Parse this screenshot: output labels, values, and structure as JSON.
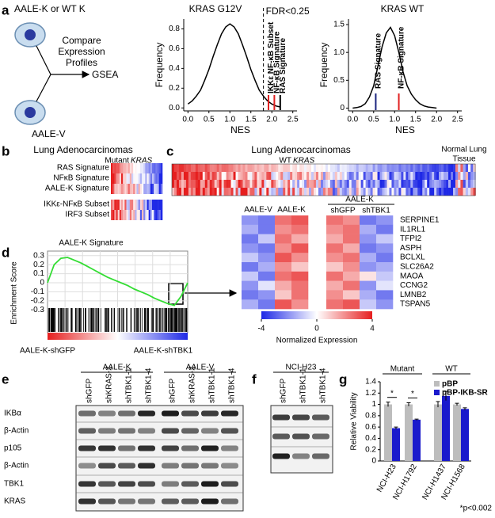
{
  "panel_labels": [
    "a",
    "b",
    "c",
    "d",
    "e",
    "f",
    "g"
  ],
  "schematic": {
    "top_cell": "AALE-K or WT K",
    "bottom_cell": "AALE-V",
    "step": [
      "Compare",
      "Expression",
      "Profiles"
    ],
    "result": "GSEA"
  },
  "chart_data": [
    {
      "type": "line",
      "title": "KRAS G12V",
      "x_label": "NES",
      "y_label": "Frequency",
      "color": "#000000",
      "x": [
        0.0,
        0.1,
        0.2,
        0.3,
        0.4,
        0.5,
        0.6,
        0.7,
        0.8,
        0.9,
        1.0,
        1.1,
        1.2,
        1.3,
        1.4,
        1.5,
        1.6,
        1.7,
        1.8,
        1.9,
        2.0,
        2.1,
        2.2
      ],
      "values": [
        0.04,
        0.07,
        0.12,
        0.18,
        0.28,
        0.39,
        0.52,
        0.64,
        0.75,
        0.82,
        0.85,
        0.82,
        0.75,
        0.64,
        0.52,
        0.39,
        0.28,
        0.18,
        0.12,
        0.07,
        0.04,
        0.02,
        0.01
      ],
      "xlim": [
        -0.1,
        2.6
      ],
      "xticks": [
        {
          "value": 0,
          "label": "0.0"
        },
        0.5,
        {
          "value": 1,
          "label": "1.0"
        },
        1.5,
        {
          "value": 2,
          "label": "2.0"
        },
        2.5
      ],
      "ylim": [
        -0.03,
        0.9
      ],
      "yticks": [
        {
          "value": 0,
          "label": "0.0"
        },
        0.2,
        0.4,
        0.6,
        0.8
      ],
      "threshold": {
        "value": 1.8,
        "label": "FDR<0.25"
      },
      "markers": [
        {
          "label": "IKKε NF-κB Subset",
          "value": 1.92,
          "color": "#e02020"
        },
        {
          "label": "NF-κB Signature",
          "value": 2.06,
          "color": "#e02020"
        },
        {
          "label": "RAS Signature",
          "value": 2.2,
          "color": "#000000"
        }
      ]
    },
    {
      "type": "line",
      "title": "KRAS WT",
      "x_label": "NES",
      "y_label": "Frequency",
      "color": "#000000",
      "x": [
        0.0,
        0.1,
        0.2,
        0.3,
        0.4,
        0.5,
        0.6,
        0.7,
        0.8,
        0.9,
        1.0,
        1.1,
        1.2,
        1.3,
        1.4,
        1.5,
        1.6,
        1.7,
        1.8,
        1.9,
        2.0
      ],
      "values": [
        0,
        0.01,
        0.03,
        0.08,
        0.2,
        0.4,
        0.75,
        1.1,
        1.35,
        1.45,
        1.3,
        1.0,
        0.65,
        0.4,
        0.25,
        0.15,
        0.08,
        0.04,
        0.02,
        0.01,
        0
      ],
      "xlim": [
        -0.1,
        2.6
      ],
      "xticks": [
        {
          "value": 0,
          "label": "0.0"
        },
        0.5,
        {
          "value": 1,
          "label": "1.0"
        },
        1.5,
        {
          "value": 2,
          "label": "2.0"
        },
        2.5
      ],
      "ylim": [
        -0.05,
        1.6
      ],
      "yticks": [
        0,
        0.5,
        {
          "value": 1,
          "label": "1.0"
        },
        1.5
      ],
      "markers": [
        {
          "label": "RAS Signature",
          "value": 0.55,
          "color": "#1a237e"
        },
        {
          "label": "NF-κB Signature",
          "value": 1.1,
          "color": "#e02020"
        }
      ]
    },
    {
      "type": "line",
      "title": "AALE-K Signature",
      "y_label": "Enrichment Score",
      "color": "#33dd33",
      "values": [
        0,
        0.2,
        0.27,
        0.28,
        0.25,
        0.22,
        0.18,
        0.14,
        0.1,
        0.06,
        0.03,
        0,
        -0.03,
        -0.07,
        -0.1,
        -0.13,
        -0.17,
        -0.2,
        -0.23,
        -0.25,
        -0.15,
        0
      ],
      "ylim": [
        -0.35,
        0.35
      ],
      "yticks": [
        0.3,
        0.2,
        0.1,
        0,
        -0.1,
        -0.2,
        -0.3
      ],
      "grid": true,
      "x_labels": [
        "AALE-K-shGFP",
        "AALE-K-shTBK1"
      ]
    },
    {
      "type": "bar",
      "y_label": "Relative Viability",
      "categories": [
        "NCI-H23",
        "NCI-H1792",
        "NCI-H1437",
        "NCI-H1568"
      ],
      "series": [
        {
          "name": "pBP",
          "color": "#bdbdbd",
          "values": [
            1,
            1,
            1,
            1
          ],
          "errors": [
            0.04,
            0.03,
            0.05,
            0.02
          ]
        },
        {
          "name": "pBP-IKB-SR",
          "color": "#1a1acc",
          "values": [
            0.58,
            0.73,
            1.15,
            0.92
          ],
          "errors": [
            0.02,
            0.01,
            0.08,
            0.02
          ]
        }
      ],
      "ylim": [
        0,
        1.4
      ],
      "yticks": [
        0,
        0.2,
        0.4,
        0.6,
        0.8,
        1,
        1.2,
        1.4
      ],
      "legend": "top-right",
      "group_labels": [
        "Mutant",
        "WT"
      ],
      "significance": [
        "*",
        "*"
      ],
      "footnote": "*p<0.002"
    }
  ],
  "heatmap_b": {
    "title": "Lung Adenocarcinomas",
    "group": "Mutant",
    "group_gene": "KRAS",
    "rows": [
      "RAS Signature",
      "NFκB Signature",
      "AALE-K Signature",
      "IKKε-NFκB Subset",
      "IRF3 Subset"
    ]
  },
  "heatmap_c": {
    "title": "Lung Adenocarcinomas",
    "group": "WT",
    "group_gene": "KRAS",
    "normal": [
      "Normal Lung",
      "Tissue"
    ]
  },
  "heatmap_genes": {
    "left_groups": [
      "AALE-V",
      "AALE-K"
    ],
    "right_title": "AALE-K",
    "right_groups": [
      "shGFP",
      "shTBK1"
    ],
    "genes": [
      "SERPINE1",
      "IL1RL1",
      "TFPI2",
      "ASPH",
      "BCLXL",
      "SLC26A2",
      "MAOA",
      "CCNG2",
      "LMNB2",
      "TSPAN5"
    ],
    "left_values": [
      [
        -2,
        -2.5,
        2.5,
        3
      ],
      [
        -1.5,
        -2.5,
        2,
        2.5
      ],
      [
        -2.5,
        -1,
        2.5,
        1.5
      ],
      [
        -2,
        -2.5,
        2,
        3
      ],
      [
        -1,
        -2,
        3,
        2
      ],
      [
        -2.5,
        -1.5,
        2,
        1
      ],
      [
        -1,
        -2.5,
        2.5,
        3
      ],
      [
        -2,
        -0.5,
        1.5,
        2.5
      ],
      [
        -2.5,
        -2,
        1,
        2.5
      ],
      [
        -1.5,
        -2.5,
        3,
        2
      ]
    ],
    "right_values": [
      [
        2.5,
        2,
        -2.5,
        -2
      ],
      [
        2,
        2.5,
        -1.5,
        -2.5
      ],
      [
        1.5,
        2.5,
        -2,
        -1
      ],
      [
        2.5,
        1.5,
        -2.5,
        -2
      ],
      [
        2,
        2.5,
        -1.5,
        -2.5
      ],
      [
        1,
        2,
        -2,
        -1.5
      ],
      [
        2.5,
        1.5,
        0.5,
        -1
      ],
      [
        1.5,
        2.5,
        -2,
        -0.5
      ],
      [
        2,
        1,
        -1.5,
        -2.5
      ],
      [
        2.5,
        3,
        -1,
        -2
      ]
    ],
    "scale_lim": [
      -4,
      4
    ],
    "scale_ticks": [
      -4,
      0,
      4
    ],
    "scale_label": "Normalized Expression"
  },
  "blot_e": {
    "groups": [
      {
        "name": "AALE-K",
        "lanes": [
          "shGFP",
          "shKRAS-2",
          "shTBK1-1",
          "shTBK1-4"
        ]
      },
      {
        "name": "AALE-V",
        "lanes": [
          "shGFP",
          "shKRAS-2",
          "shTBK1-1",
          "shTBK1-4"
        ]
      }
    ],
    "rows": [
      "IKBα",
      "β-Actin",
      "p105",
      "β-Actin",
      "TBK1",
      "KRAS"
    ]
  },
  "blot_f": {
    "title": "NCI-H23",
    "lanes": [
      "shGFP",
      "shTBK1-1",
      "shTBK1-4"
    ]
  }
}
